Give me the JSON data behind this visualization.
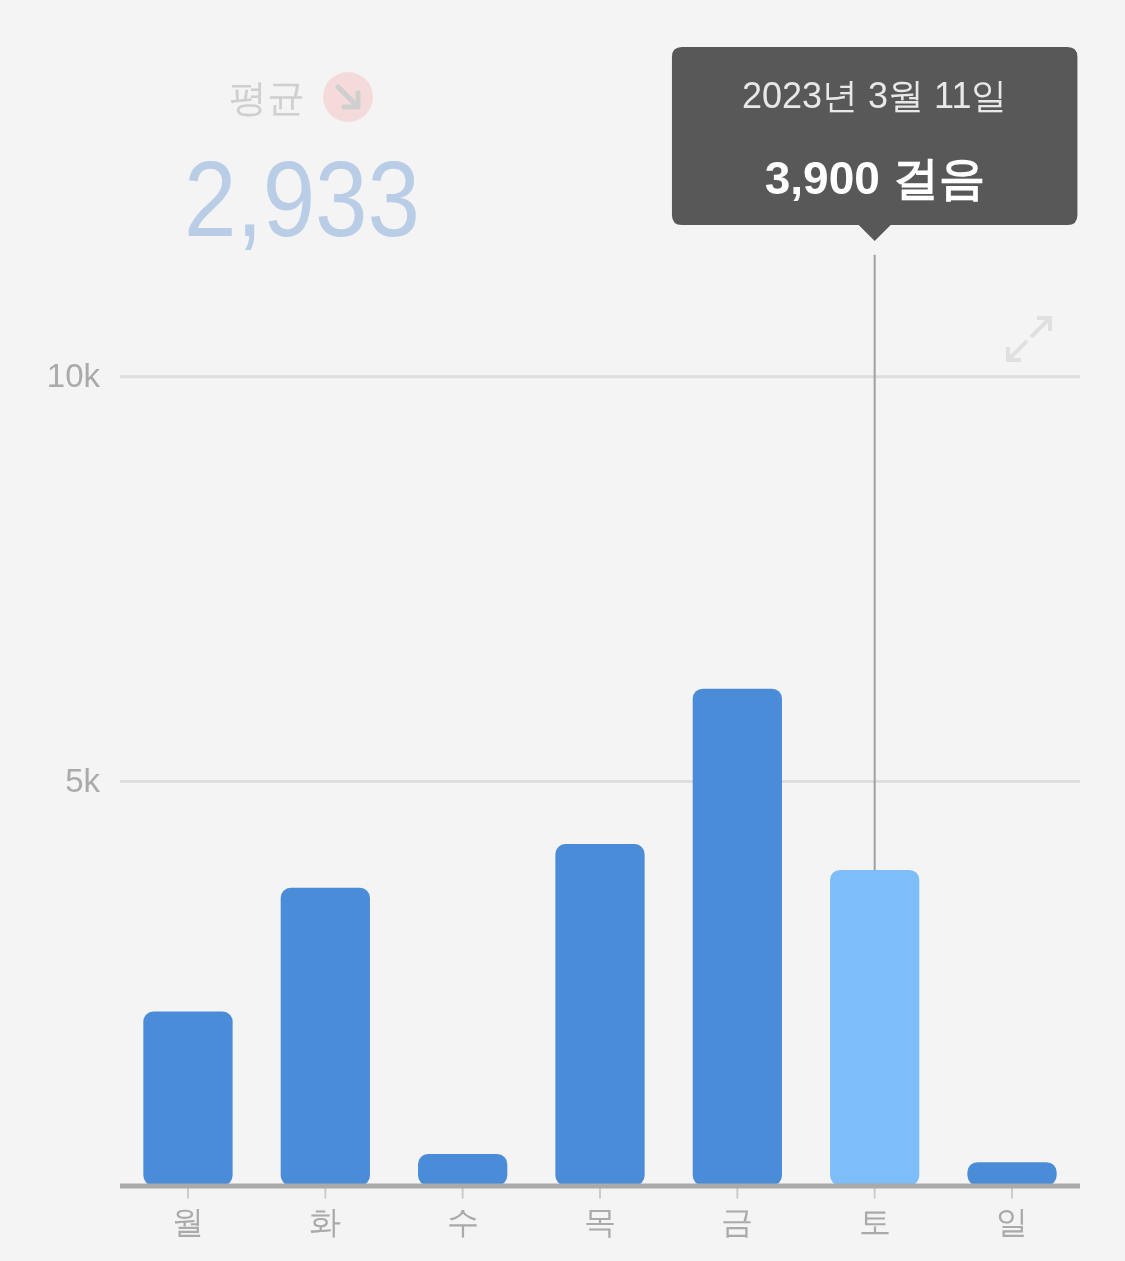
{
  "chart_data": {
    "type": "bar",
    "title": "평균",
    "subtitle": "2,933",
    "categories": [
      "월",
      "화",
      "수",
      "목",
      "금",
      "토",
      "일"
    ],
    "values": [
      2150,
      3680,
      390,
      4220,
      6140,
      3900,
      290
    ],
    "colors": [
      "#4b8cd8",
      "#4b8cd8",
      "#4b8cd8",
      "#4b8cd8",
      "#4b8cd8",
      "#7dbef8",
      "#4b8cd8"
    ],
    "ylim": [
      0,
      11500
    ],
    "yticks": [
      {
        "value": 5000,
        "label": "5k"
      },
      {
        "value": 10000,
        "label": "10k"
      }
    ],
    "grid": "y",
    "annotations": [
      "2023년 3월 11일",
      {
        "text": "3,900 걸음",
        "x": "토",
        "y": 3900
      }
    ]
  }
}
